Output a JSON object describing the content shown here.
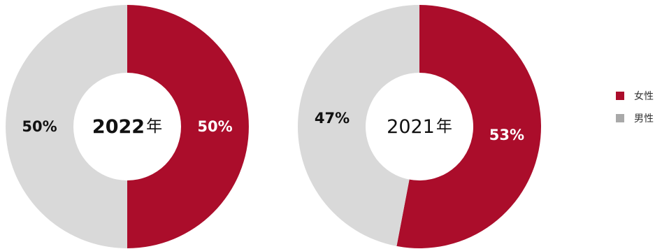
{
  "chart_data": [
    {
      "type": "pie",
      "style": "donut",
      "center_label": {
        "number": "2022",
        "suffix": "年",
        "bold": true
      },
      "slices": [
        {
          "name": "女性",
          "label": "50%",
          "value": 50,
          "color": "#ab0d2b",
          "label_color": "#ffffff"
        },
        {
          "name": "男性",
          "label": "50%",
          "value": 50,
          "color": "#d9d9d9",
          "label_color": "#111111"
        }
      ]
    },
    {
      "type": "pie",
      "style": "donut",
      "center_label": {
        "number": "2021",
        "suffix": "年",
        "bold": false
      },
      "slices": [
        {
          "name": "女性",
          "label": "53%",
          "value": 53,
          "color": "#ab0d2b",
          "label_color": "#ffffff"
        },
        {
          "name": "男性",
          "label": "47%",
          "value": 47,
          "color": "#d9d9d9",
          "label_color": "#111111"
        }
      ]
    }
  ],
  "legend": {
    "placement": "right",
    "items": [
      {
        "label": "女性",
        "color": "#ab0d2b"
      },
      {
        "label": "男性",
        "color": "#a9a9a9"
      }
    ]
  }
}
